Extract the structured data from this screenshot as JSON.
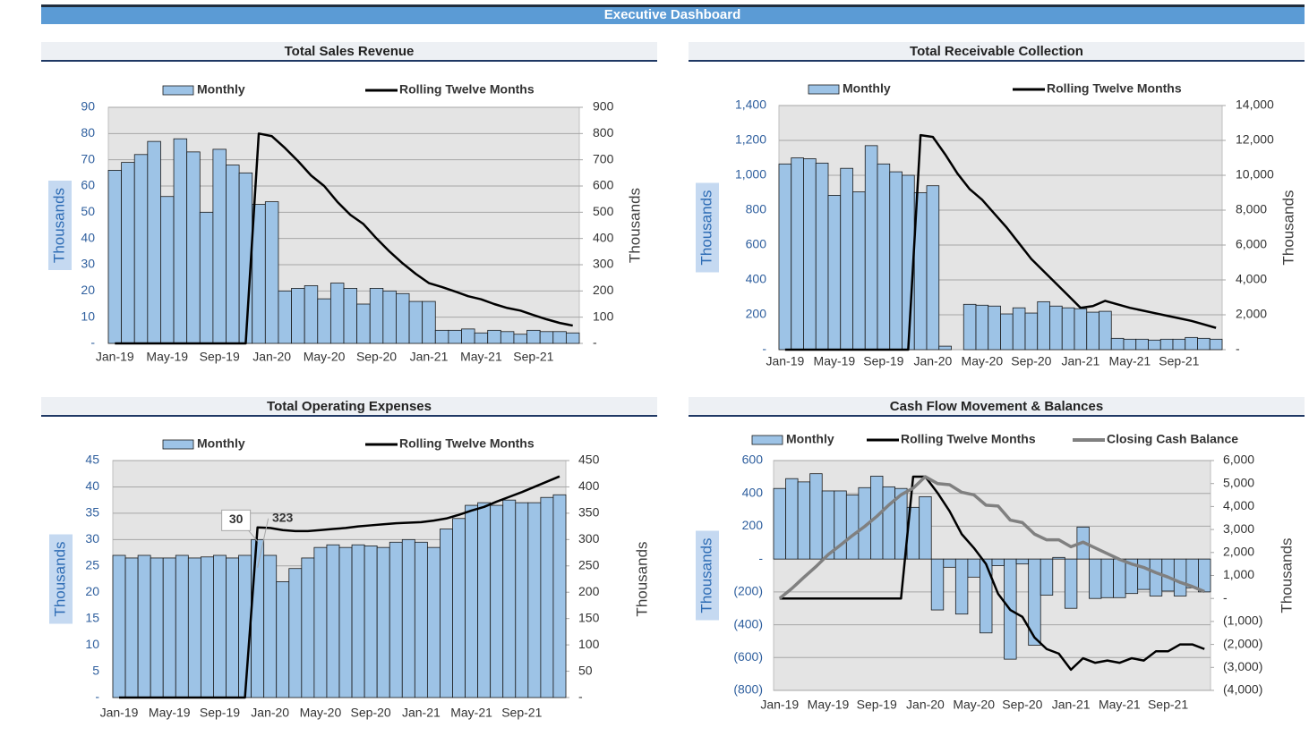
{
  "header": {
    "title": "Executive Dashboard"
  },
  "chart_data": [
    {
      "type": "combo",
      "title": "Total Sales Revenue",
      "y_label": "Thousands",
      "y2_label": "Thousands",
      "categories": [
        "Jan-19",
        null,
        null,
        null,
        "May-19",
        null,
        null,
        null,
        "Sep-19",
        null,
        null,
        null,
        "Jan-20",
        null,
        null,
        null,
        "May-20",
        null,
        null,
        null,
        "Sep-20",
        null,
        null,
        null,
        "Jan-21",
        null,
        null,
        null,
        "May-21",
        null,
        null,
        null,
        "Sep-21",
        null,
        null,
        null
      ],
      "series": [
        {
          "name": "Monthly",
          "type": "bar",
          "color": "#9dc3e6",
          "values": [
            66,
            69,
            72,
            77,
            56,
            78,
            73,
            50,
            74,
            68,
            65,
            53,
            54,
            20,
            21,
            22,
            17,
            23,
            21,
            15,
            21,
            20,
            19,
            16,
            16,
            5,
            5,
            5.5,
            4,
            5,
            4.5,
            3.5,
            5,
            4.5,
            4.5,
            4
          ]
        },
        {
          "name": "Rolling Twelve Months",
          "type": "line",
          "axis": "y2",
          "color": "#000000",
          "values": [
            0,
            0,
            0,
            0,
            0,
            0,
            0,
            0,
            0,
            0,
            0,
            800,
            790,
            745,
            695,
            640,
            600,
            540,
            490,
            455,
            400,
            350,
            305,
            265,
            230,
            215,
            198,
            180,
            168,
            150,
            135,
            125,
            108,
            92,
            78,
            68
          ]
        }
      ],
      "ylim": [
        0,
        90
      ],
      "yticks": [
        {
          "value": 0,
          "label": "-"
        },
        10,
        20,
        30,
        40,
        50,
        60,
        70,
        80,
        90
      ],
      "y2lim": [
        0,
        900
      ],
      "y2ticks": [
        {
          "value": 0,
          "label": "-"
        },
        100,
        200,
        300,
        400,
        500,
        600,
        700,
        800,
        900
      ],
      "grid": true
    },
    {
      "type": "combo",
      "title": "Total Receivable Collection",
      "y_label": "Thousands",
      "y2_label": "Thousands",
      "categories": [
        "Jan-19",
        null,
        null,
        null,
        "May-19",
        null,
        null,
        null,
        "Sep-19",
        null,
        null,
        null,
        "Jan-20",
        null,
        null,
        null,
        "May-20",
        null,
        null,
        null,
        "Sep-20",
        null,
        null,
        null,
        "Jan-21",
        null,
        null,
        null,
        "May-21",
        null,
        null,
        null,
        "Sep-21",
        null,
        null,
        null
      ],
      "series": [
        {
          "name": "Monthly",
          "type": "bar",
          "color": "#9dc3e6",
          "values": [
            1065,
            1100,
            1095,
            1070,
            885,
            1040,
            905,
            1170,
            1065,
            1020,
            1000,
            900,
            940,
            20,
            0,
            260,
            255,
            250,
            205,
            240,
            210,
            275,
            250,
            240,
            235,
            215,
            220,
            65,
            60,
            60,
            55,
            60,
            60,
            70,
            65,
            60
          ]
        },
        {
          "name": "Rolling Twelve Months",
          "type": "line",
          "axis": "y2",
          "color": "#000000",
          "values": [
            0,
            0,
            0,
            0,
            0,
            0,
            0,
            0,
            0,
            0,
            0,
            12300,
            12200,
            11200,
            10100,
            9200,
            8600,
            7800,
            7000,
            6100,
            5200,
            4500,
            3800,
            3100,
            2400,
            2500,
            2800,
            2600,
            2400,
            2250,
            2100,
            1950,
            1800,
            1650,
            1450,
            1250
          ]
        }
      ],
      "ylim": [
        0,
        1400
      ],
      "yticks": [
        {
          "value": 0,
          "label": "-"
        },
        200,
        400,
        600,
        800,
        {
          "value": 1000,
          "label": "1,000"
        },
        {
          "value": 1200,
          "label": "1,200"
        },
        {
          "value": 1400,
          "label": "1,400"
        }
      ],
      "y2lim": [
        0,
        14000
      ],
      "y2ticks": [
        {
          "value": 0,
          "label": "-"
        },
        {
          "value": 2000,
          "label": "2,000"
        },
        {
          "value": 4000,
          "label": "4,000"
        },
        {
          "value": 6000,
          "label": "6,000"
        },
        {
          "value": 8000,
          "label": "8,000"
        },
        {
          "value": 10000,
          "label": "10,000"
        },
        {
          "value": 12000,
          "label": "12,000"
        },
        {
          "value": 14000,
          "label": "14,000"
        }
      ],
      "grid": true
    },
    {
      "type": "combo",
      "title": "Total Operating Expenses",
      "y_label": "Thousands",
      "y2_label": "Thousands",
      "categories": [
        "Jan-19",
        null,
        null,
        null,
        "May-19",
        null,
        null,
        null,
        "Sep-19",
        null,
        null,
        null,
        "Jan-20",
        null,
        null,
        null,
        "May-20",
        null,
        null,
        null,
        "Sep-20",
        null,
        null,
        null,
        "Jan-21",
        null,
        null,
        null,
        "May-21",
        null,
        null,
        null,
        "Sep-21",
        null,
        null,
        null
      ],
      "series": [
        {
          "name": "Monthly",
          "type": "bar",
          "color": "#9dc3e6",
          "values": [
            27,
            26.5,
            27,
            26.5,
            26.5,
            27,
            26.5,
            26.7,
            27,
            26.5,
            27,
            30,
            27,
            22,
            24.5,
            26.5,
            28.5,
            29,
            28.5,
            29,
            28.8,
            28.5,
            29.5,
            30,
            29.5,
            28.5,
            32,
            34,
            36.5,
            37,
            36.5,
            37.5,
            37,
            37,
            38,
            38.5
          ]
        },
        {
          "name": "Rolling Twelve Months",
          "type": "line",
          "axis": "y2",
          "color": "#000000",
          "values": [
            0,
            0,
            0,
            0,
            0,
            0,
            0,
            0,
            0,
            0,
            0,
            323,
            322,
            318,
            316,
            316,
            318,
            320,
            322,
            325,
            327,
            329,
            331,
            332,
            333,
            336,
            340,
            347,
            355,
            362,
            372,
            381,
            390,
            400,
            410,
            420
          ]
        }
      ],
      "ylim": [
        0,
        45
      ],
      "yticks": [
        {
          "value": 0,
          "label": "-"
        },
        5,
        10,
        15,
        20,
        25,
        30,
        35,
        40,
        45
      ],
      "y2lim": [
        0,
        450
      ],
      "y2ticks": [
        {
          "value": 0,
          "label": "-"
        },
        50,
        100,
        150,
        200,
        250,
        300,
        350,
        400,
        450
      ],
      "grid": true
    },
    {
      "type": "combo",
      "title": "Cash Flow Movement & Balances",
      "y_label": "Thousands",
      "y2_label": "Thousands",
      "categories": [
        "Jan-19",
        null,
        null,
        null,
        "May-19",
        null,
        null,
        null,
        "Sep-19",
        null,
        null,
        null,
        "Jan-20",
        null,
        null,
        null,
        "May-20",
        null,
        null,
        null,
        "Sep-20",
        null,
        null,
        null,
        "Jan-21",
        null,
        null,
        null,
        "May-21",
        null,
        null,
        null,
        "Sep-21",
        null,
        null,
        null
      ],
      "series": [
        {
          "name": "Monthly",
          "type": "bar",
          "color": "#9dc3e6",
          "values": [
            430,
            490,
            470,
            520,
            415,
            415,
            390,
            435,
            505,
            440,
            430,
            315,
            380,
            -310,
            -50,
            -335,
            -110,
            -450,
            -40,
            -610,
            -30,
            -525,
            -220,
            10,
            -300,
            195,
            -240,
            -235,
            -235,
            -210,
            -185,
            -225,
            -195,
            -225,
            -175,
            -200
          ]
        },
        {
          "name": "Rolling Twelve Months",
          "type": "line",
          "axis": "y2",
          "color": "#000000",
          "values": [
            0,
            0,
            0,
            0,
            0,
            0,
            0,
            0,
            0,
            0,
            0,
            5300,
            5300,
            4600,
            3800,
            2800,
            2200,
            1500,
            200,
            -500,
            -800,
            -1700,
            -2200,
            -2400,
            -3100,
            -2600,
            -2800,
            -2700,
            -2800,
            -2600,
            -2700,
            -2300,
            -2300,
            -2000,
            -2000,
            -2200
          ]
        },
        {
          "name": "Closing Cash Balance",
          "type": "line",
          "axis": "y2",
          "color": "#808080",
          "values": [
            0,
            430,
            920,
            1390,
            1910,
            2320,
            2740,
            3130,
            3570,
            4070,
            4510,
            4800,
            5300,
            5000,
            4950,
            4620,
            4510,
            4060,
            4020,
            3410,
            3300,
            2800,
            2550,
            2550,
            2250,
            2450,
            2200,
            1950,
            1700,
            1500,
            1350,
            1120,
            930,
            700,
            520,
            300
          ]
        }
      ],
      "ylim": [
        -800,
        600
      ],
      "yticks": [
        {
          "value": -800,
          "label": "(800)"
        },
        {
          "value": -600,
          "label": "(600)"
        },
        {
          "value": -400,
          "label": "(400)"
        },
        {
          "value": -200,
          "label": "(200)"
        },
        {
          "value": 0,
          "label": "-"
        },
        200,
        400,
        600
      ],
      "y2lim": [
        -4000,
        6000
      ],
      "y2ticks": [
        {
          "value": -4000,
          "label": "(4,000)"
        },
        {
          "value": -3000,
          "label": "(3,000)"
        },
        {
          "value": -2000,
          "label": "(2,000)"
        },
        {
          "value": -1000,
          "label": "(1,000)"
        },
        {
          "value": 0,
          "label": "-"
        },
        {
          "value": 1000,
          "label": "1,000"
        },
        {
          "value": 2000,
          "label": "2,000"
        },
        {
          "value": 3000,
          "label": "3,000"
        },
        {
          "value": 4000,
          "label": "4,000"
        },
        {
          "value": 5000,
          "label": "5,000"
        },
        {
          "value": 6000,
          "label": "6,000"
        }
      ],
      "grid": true
    }
  ]
}
